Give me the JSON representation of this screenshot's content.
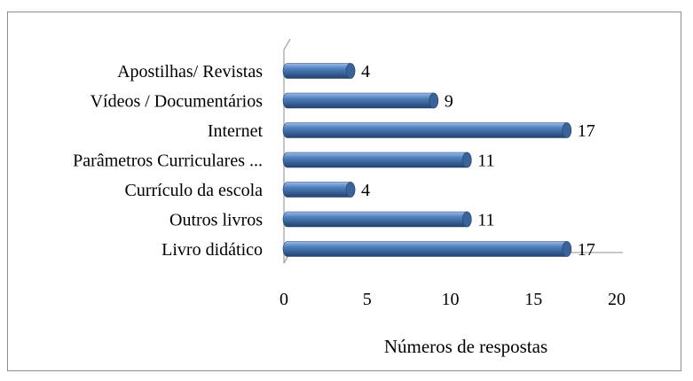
{
  "chart_data": {
    "type": "bar",
    "orientation": "horizontal",
    "style": "3d-cylinder",
    "categories": [
      "Livro didático",
      "Outros livros",
      "Currículo da escola",
      "Parâmetros Curriculares ...",
      "Internet",
      "Vídeos / Documentários",
      "Apostilhas/ Revistas"
    ],
    "values": [
      17,
      11,
      4,
      11,
      17,
      9,
      4
    ],
    "xlabel": "Números de respostas",
    "ylabel": "",
    "xlim": [
      0,
      20
    ],
    "xticks": [
      0,
      5,
      10,
      15,
      20
    ],
    "grid": false,
    "legend": "none",
    "colors": {
      "bar_light": "#9dbbe8",
      "bar_mid": "#4f81bd",
      "bar_dark": "#23426f",
      "bar_cap": "#3a6399",
      "axis": "#a6a6a6"
    }
  }
}
